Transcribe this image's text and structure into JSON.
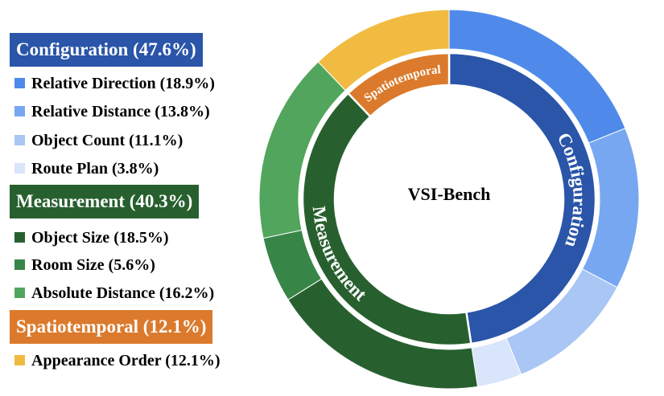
{
  "chart_data": {
    "type": "pie",
    "title": "VSI-Bench",
    "categories": [
      {
        "name": "Configuration",
        "percent": 47.6,
        "header_label": "Configuration (47.6%)",
        "ring_label": "Configuration",
        "color": "#2a55a8",
        "tasks": [
          {
            "name": "Relative Direction",
            "percent": 18.9,
            "label": "Relative Direction (18.9%)",
            "color": "#4f8aea"
          },
          {
            "name": "Relative Distance",
            "percent": 13.8,
            "label": "Relative Distance (13.8%)",
            "color": "#77a7f1"
          },
          {
            "name": "Object Count",
            "percent": 11.1,
            "label": "Object Count (11.1%)",
            "color": "#a9c6f5"
          },
          {
            "name": "Route Plan",
            "percent": 3.8,
            "label": "Route Plan (3.8%)",
            "color": "#d8e5fa"
          }
        ]
      },
      {
        "name": "Measurement",
        "percent": 40.3,
        "header_label": "Measurement (40.3%)",
        "ring_label": "Measurement",
        "color": "#27602e",
        "tasks": [
          {
            "name": "Object Size",
            "percent": 18.5,
            "label": "Object Size (18.5%)",
            "color": "#27602e"
          },
          {
            "name": "Room Size",
            "percent": 5.6,
            "label": "Room Size (5.6%)",
            "color": "#388548"
          },
          {
            "name": "Absolute Distance",
            "percent": 16.2,
            "label": "Absolute Distance (16.2%)",
            "color": "#52a55c"
          }
        ]
      },
      {
        "name": "Spatiotemporal",
        "percent": 12.1,
        "header_label": "Spatiotemporal (12.1%)",
        "ring_label": "Spatiotemporal",
        "color": "#db7a2c",
        "tasks": [
          {
            "name": "Appearance Order",
            "percent": 12.1,
            "label": "Appearance Order (12.1%)",
            "color": "#f0bb40"
          }
        ]
      }
    ]
  }
}
